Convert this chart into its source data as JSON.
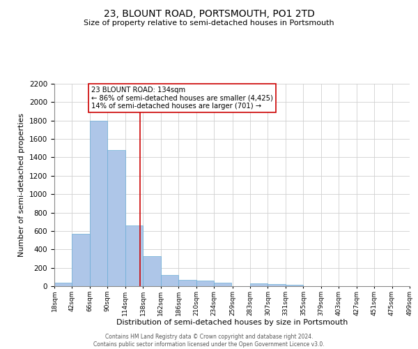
{
  "title": "23, BLOUNT ROAD, PORTSMOUTH, PO1 2TD",
  "subtitle": "Size of property relative to semi-detached houses in Portsmouth",
  "xlabel": "Distribution of semi-detached houses by size in Portsmouth",
  "ylabel": "Number of semi-detached properties",
  "bar_edges": [
    18,
    42,
    66,
    90,
    114,
    138,
    162,
    186,
    210,
    234,
    259,
    283,
    307,
    331,
    355,
    379,
    403,
    427,
    451,
    475,
    499
  ],
  "bar_heights": [
    40,
    570,
    1800,
    1480,
    660,
    325,
    120,
    65,
    58,
    35,
    0,
    28,
    25,
    18,
    0,
    0,
    0,
    0,
    0,
    0
  ],
  "bar_color": "#aec6e8",
  "bar_edgecolor": "#6aaed6",
  "property_line_x": 134,
  "property_line_color": "#cc0000",
  "annotation_text": "23 BLOUNT ROAD: 134sqm\n← 86% of semi-detached houses are smaller (4,425)\n14% of semi-detached houses are larger (701) →",
  "annotation_box_edgecolor": "#cc0000",
  "ylim": [
    0,
    2200
  ],
  "yticks": [
    0,
    200,
    400,
    600,
    800,
    1000,
    1200,
    1400,
    1600,
    1800,
    2000,
    2200
  ],
  "tick_labels": [
    "18sqm",
    "42sqm",
    "66sqm",
    "90sqm",
    "114sqm",
    "138sqm",
    "162sqm",
    "186sqm",
    "210sqm",
    "234sqm",
    "259sqm",
    "283sqm",
    "307sqm",
    "331sqm",
    "355sqm",
    "379sqm",
    "403sqm",
    "427sqm",
    "451sqm",
    "475sqm",
    "499sqm"
  ],
  "footer_line1": "Contains HM Land Registry data © Crown copyright and database right 2024.",
  "footer_line2": "Contains public sector information licensed under the Open Government Licence v3.0.",
  "background_color": "#ffffff",
  "grid_color": "#d0d0d0"
}
